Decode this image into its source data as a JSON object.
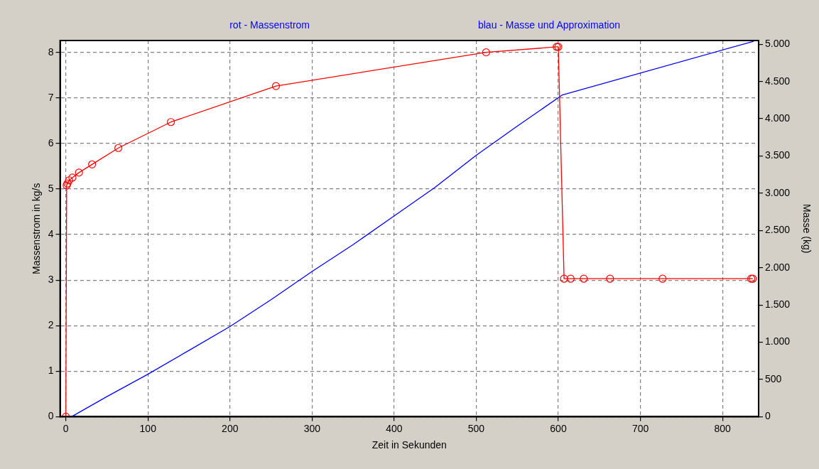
{
  "chart_data": {
    "type": "line",
    "xlabel": "Zeit in Sekunden",
    "ylabel": "Massenstrom in kg/s",
    "y2label": "Masse (kg)",
    "annotations": [
      "rot - Massenstrom",
      "blau - Masse und Approximation"
    ],
    "xlim": [
      -7,
      844
    ],
    "xticks": [
      0,
      100,
      200,
      300,
      400,
      500,
      600,
      700,
      800
    ],
    "ylim": [
      0,
      8.26
    ],
    "yticks": [
      0,
      1,
      2,
      3,
      4,
      5,
      6,
      7,
      8
    ],
    "y2lim": [
      0,
      5050
    ],
    "y2ticks": [
      0,
      500,
      {
        "value": 1000,
        "label": "1.000"
      },
      {
        "value": 1500,
        "label": "1.500"
      },
      {
        "value": 2000,
        "label": "2.000"
      },
      {
        "value": 2500,
        "label": "2.500"
      },
      {
        "value": 3000,
        "label": "3.000"
      },
      {
        "value": 3500,
        "label": "3.500"
      },
      {
        "value": 4000,
        "label": "4.000"
      },
      {
        "value": 4500,
        "label": "4.500"
      },
      {
        "value": 5000,
        "label": "5.000"
      }
    ],
    "grid": true,
    "legend": false,
    "line_style": "solid",
    "series": [
      {
        "color": "#ff0000",
        "marker": "circle",
        "x": [
          0,
          1,
          2,
          4,
          8,
          16,
          32,
          64,
          128,
          256,
          512,
          598,
          600,
          607,
          615,
          631,
          663,
          727,
          835,
          837
        ],
        "values": [
          0,
          5.08,
          5.12,
          5.19,
          5.25,
          5.36,
          5.54,
          5.9,
          6.47,
          7.26,
          8,
          8.12,
          8.12,
          3.03,
          3.03,
          3.03,
          3.03,
          3.03,
          3.03,
          3.03
        ]
      },
      {
        "color": "#0000ff",
        "marker": "none",
        "axis": "y2",
        "x": [
          7,
          50,
          100,
          150,
          200,
          250,
          300,
          350,
          398,
          450,
          500,
          550,
          605,
          838
        ],
        "values": [
          0,
          270,
          570,
          890,
          1210,
          1570,
          1950,
          2310,
          2680,
          3080,
          3510,
          3900,
          4320,
          5040
        ]
      }
    ]
  }
}
